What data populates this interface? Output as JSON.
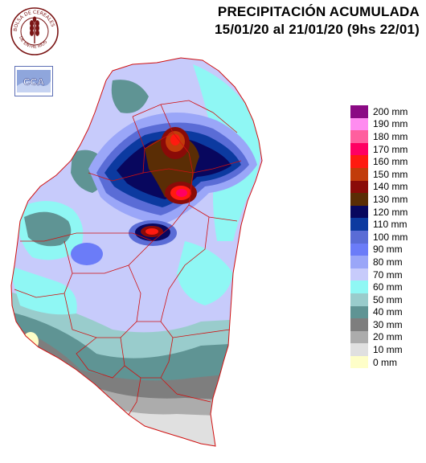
{
  "header": {
    "title_line1": "PRECIPITACIÓN ACUMULADA",
    "title_line2": "15/01/20 al 21/01/20 (9hs 22/01)"
  },
  "logos": {
    "seal_top": "BOLSA DE CEREALES",
    "seal_bottom": "DE ENTRE RIOS",
    "cca_text": "CCA"
  },
  "legend": [
    {
      "label": "200 mm",
      "color": "#8b0a84"
    },
    {
      "label": "190 mm",
      "color": "#ff8cf0"
    },
    {
      "label": "180 mm",
      "color": "#ff5f9e"
    },
    {
      "label": "170 mm",
      "color": "#ff0062"
    },
    {
      "label": "160 mm",
      "color": "#ff1a10"
    },
    {
      "label": "150 mm",
      "color": "#c23c0a"
    },
    {
      "label": "140 mm",
      "color": "#8a0b08"
    },
    {
      "label": "130 mm",
      "color": "#5a2d05"
    },
    {
      "label": "120 mm",
      "color": "#08075e"
    },
    {
      "label": "110 mm",
      "color": "#0c3aa0"
    },
    {
      "label": "100 mm",
      "color": "#5a6cd6"
    },
    {
      "label": "90 mm",
      "color": "#6b7cf8"
    },
    {
      "label": "80 mm",
      "color": "#9aa6f8"
    },
    {
      "label": "70 mm",
      "color": "#c7cbfb"
    },
    {
      "label": "60 mm",
      "color": "#8ff7f4"
    },
    {
      "label": "50 mm",
      "color": "#99cccc"
    },
    {
      "label": "40 mm",
      "color": "#5f9494"
    },
    {
      "label": "30 mm",
      "color": "#7e7e7e"
    },
    {
      "label": "20 mm",
      "color": "#acacac"
    },
    {
      "label": "10 mm",
      "color": "#e0e0e0"
    },
    {
      "label": "0 mm",
      "color": "#fefec8"
    }
  ]
}
